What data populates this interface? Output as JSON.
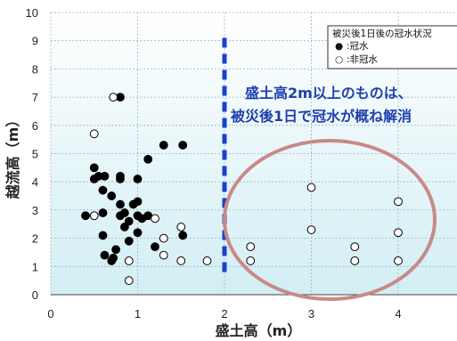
{
  "chart_data": {
    "type": "scatter",
    "xlabel": "盛土高（m）",
    "ylabel": "越流高（m）",
    "xlim": [
      0,
      4.7
    ],
    "ylim": [
      0,
      10
    ],
    "xticks": [
      "0",
      "1",
      "2",
      "3",
      "4"
    ],
    "yticks": [
      "0",
      "1",
      "2",
      "3",
      "4",
      "5",
      "6",
      "7",
      "8",
      "9",
      "10"
    ],
    "grid": true,
    "legend": {
      "title": "被災後1日後の冠水状況",
      "placement": "top-right",
      "items": [
        {
          "symbol": "●",
          "label": ":冠水"
        },
        {
          "symbol": "○",
          "label": ":非冠水"
        }
      ]
    },
    "threshold_line": {
      "x": 2,
      "style": "dashed",
      "color": "#1a3fd0"
    },
    "annotation": [
      "盛土高2m以上のものは、",
      "被災後1日で冠水が概ね解消"
    ],
    "highlight": {
      "shape": "ellipse",
      "region": "x ≥ 2",
      "color": "#c88a86"
    },
    "series": [
      {
        "name": "冠水",
        "filled": true,
        "points": [
          [
            0.4,
            2.8
          ],
          [
            0.5,
            4.5
          ],
          [
            0.5,
            4.1
          ],
          [
            0.55,
            4.2
          ],
          [
            0.6,
            2.9
          ],
          [
            0.6,
            3.7
          ],
          [
            0.6,
            2.1
          ],
          [
            0.62,
            4.2
          ],
          [
            0.62,
            1.4
          ],
          [
            0.7,
            3.5
          ],
          [
            0.7,
            1.2
          ],
          [
            0.72,
            1.3
          ],
          [
            0.75,
            1.6
          ],
          [
            0.8,
            7.0
          ],
          [
            0.8,
            4.2
          ],
          [
            0.8,
            4.1
          ],
          [
            0.8,
            3.2
          ],
          [
            0.8,
            2.8
          ],
          [
            0.85,
            2.9
          ],
          [
            0.85,
            2.4
          ],
          [
            0.9,
            2.6
          ],
          [
            0.9,
            1.9
          ],
          [
            0.95,
            3.2
          ],
          [
            1.0,
            4.1
          ],
          [
            1.0,
            3.3
          ],
          [
            1.0,
            2.8
          ],
          [
            1.0,
            2.2
          ],
          [
            1.05,
            2.7
          ],
          [
            1.12,
            4.8
          ],
          [
            1.12,
            2.8
          ],
          [
            1.2,
            1.7
          ],
          [
            1.3,
            5.3
          ],
          [
            1.52,
            5.3
          ],
          [
            1.52,
            2.1
          ]
        ]
      },
      {
        "name": "非冠水",
        "filled": false,
        "points": [
          [
            0.5,
            5.7
          ],
          [
            0.5,
            2.8
          ],
          [
            0.72,
            7.0
          ],
          [
            0.9,
            1.2
          ],
          [
            0.9,
            0.5
          ],
          [
            1.2,
            2.7
          ],
          [
            1.3,
            2.0
          ],
          [
            1.3,
            1.4
          ],
          [
            1.5,
            2.4
          ],
          [
            1.5,
            1.2
          ],
          [
            1.8,
            1.2
          ],
          [
            2.3,
            1.7
          ],
          [
            2.3,
            1.2
          ],
          [
            3.0,
            3.8
          ],
          [
            3.0,
            2.3
          ],
          [
            3.5,
            1.7
          ],
          [
            3.5,
            1.2
          ],
          [
            4.0,
            3.3
          ],
          [
            4.0,
            2.2
          ],
          [
            4.0,
            1.2
          ]
        ]
      }
    ]
  }
}
